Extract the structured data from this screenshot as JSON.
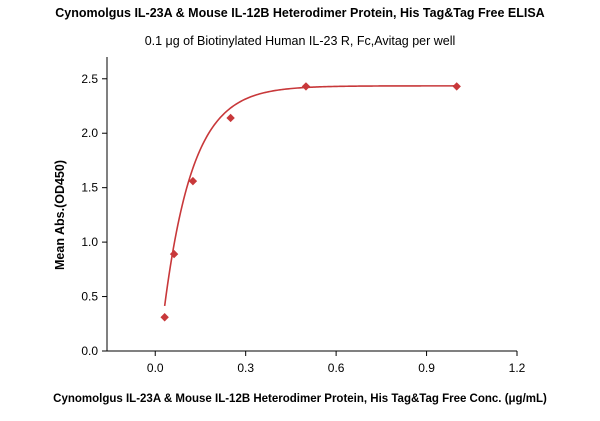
{
  "chart_data": {
    "type": "scatter",
    "title": "Cynomolgus IL-23A & Mouse IL-12B Heterodimer Protein, His Tag&Tag Free ELISA",
    "subtitle": "0.1 μg of Biotinylated Human IL-23 R, Fc,Avitag per well",
    "xlabel": "Cynomolgus IL-23A & Mouse IL-12B Heterodimer Protein, His Tag&Tag Free Conc. (μg/mL)",
    "ylabel": "Mean Abs.(OD450)",
    "xlim": [
      -0.16,
      1.2
    ],
    "ylim": [
      0,
      2.7
    ],
    "x_ticks": [
      "0.0",
      "0.3",
      "0.6",
      "0.9",
      "1.2"
    ],
    "y_ticks": [
      "0.0",
      "0.5",
      "1.0",
      "1.5",
      "2.0",
      "2.5"
    ],
    "grid": false,
    "series": [
      {
        "x": [
          0.03125,
          0.0625,
          0.125,
          0.25,
          0.5,
          1.0
        ],
        "y": [
          0.31,
          0.89,
          1.56,
          2.14,
          2.43,
          2.43
        ],
        "marker": "diamond",
        "fit": "sigmoidal curve",
        "color": "#c8383a"
      }
    ]
  }
}
